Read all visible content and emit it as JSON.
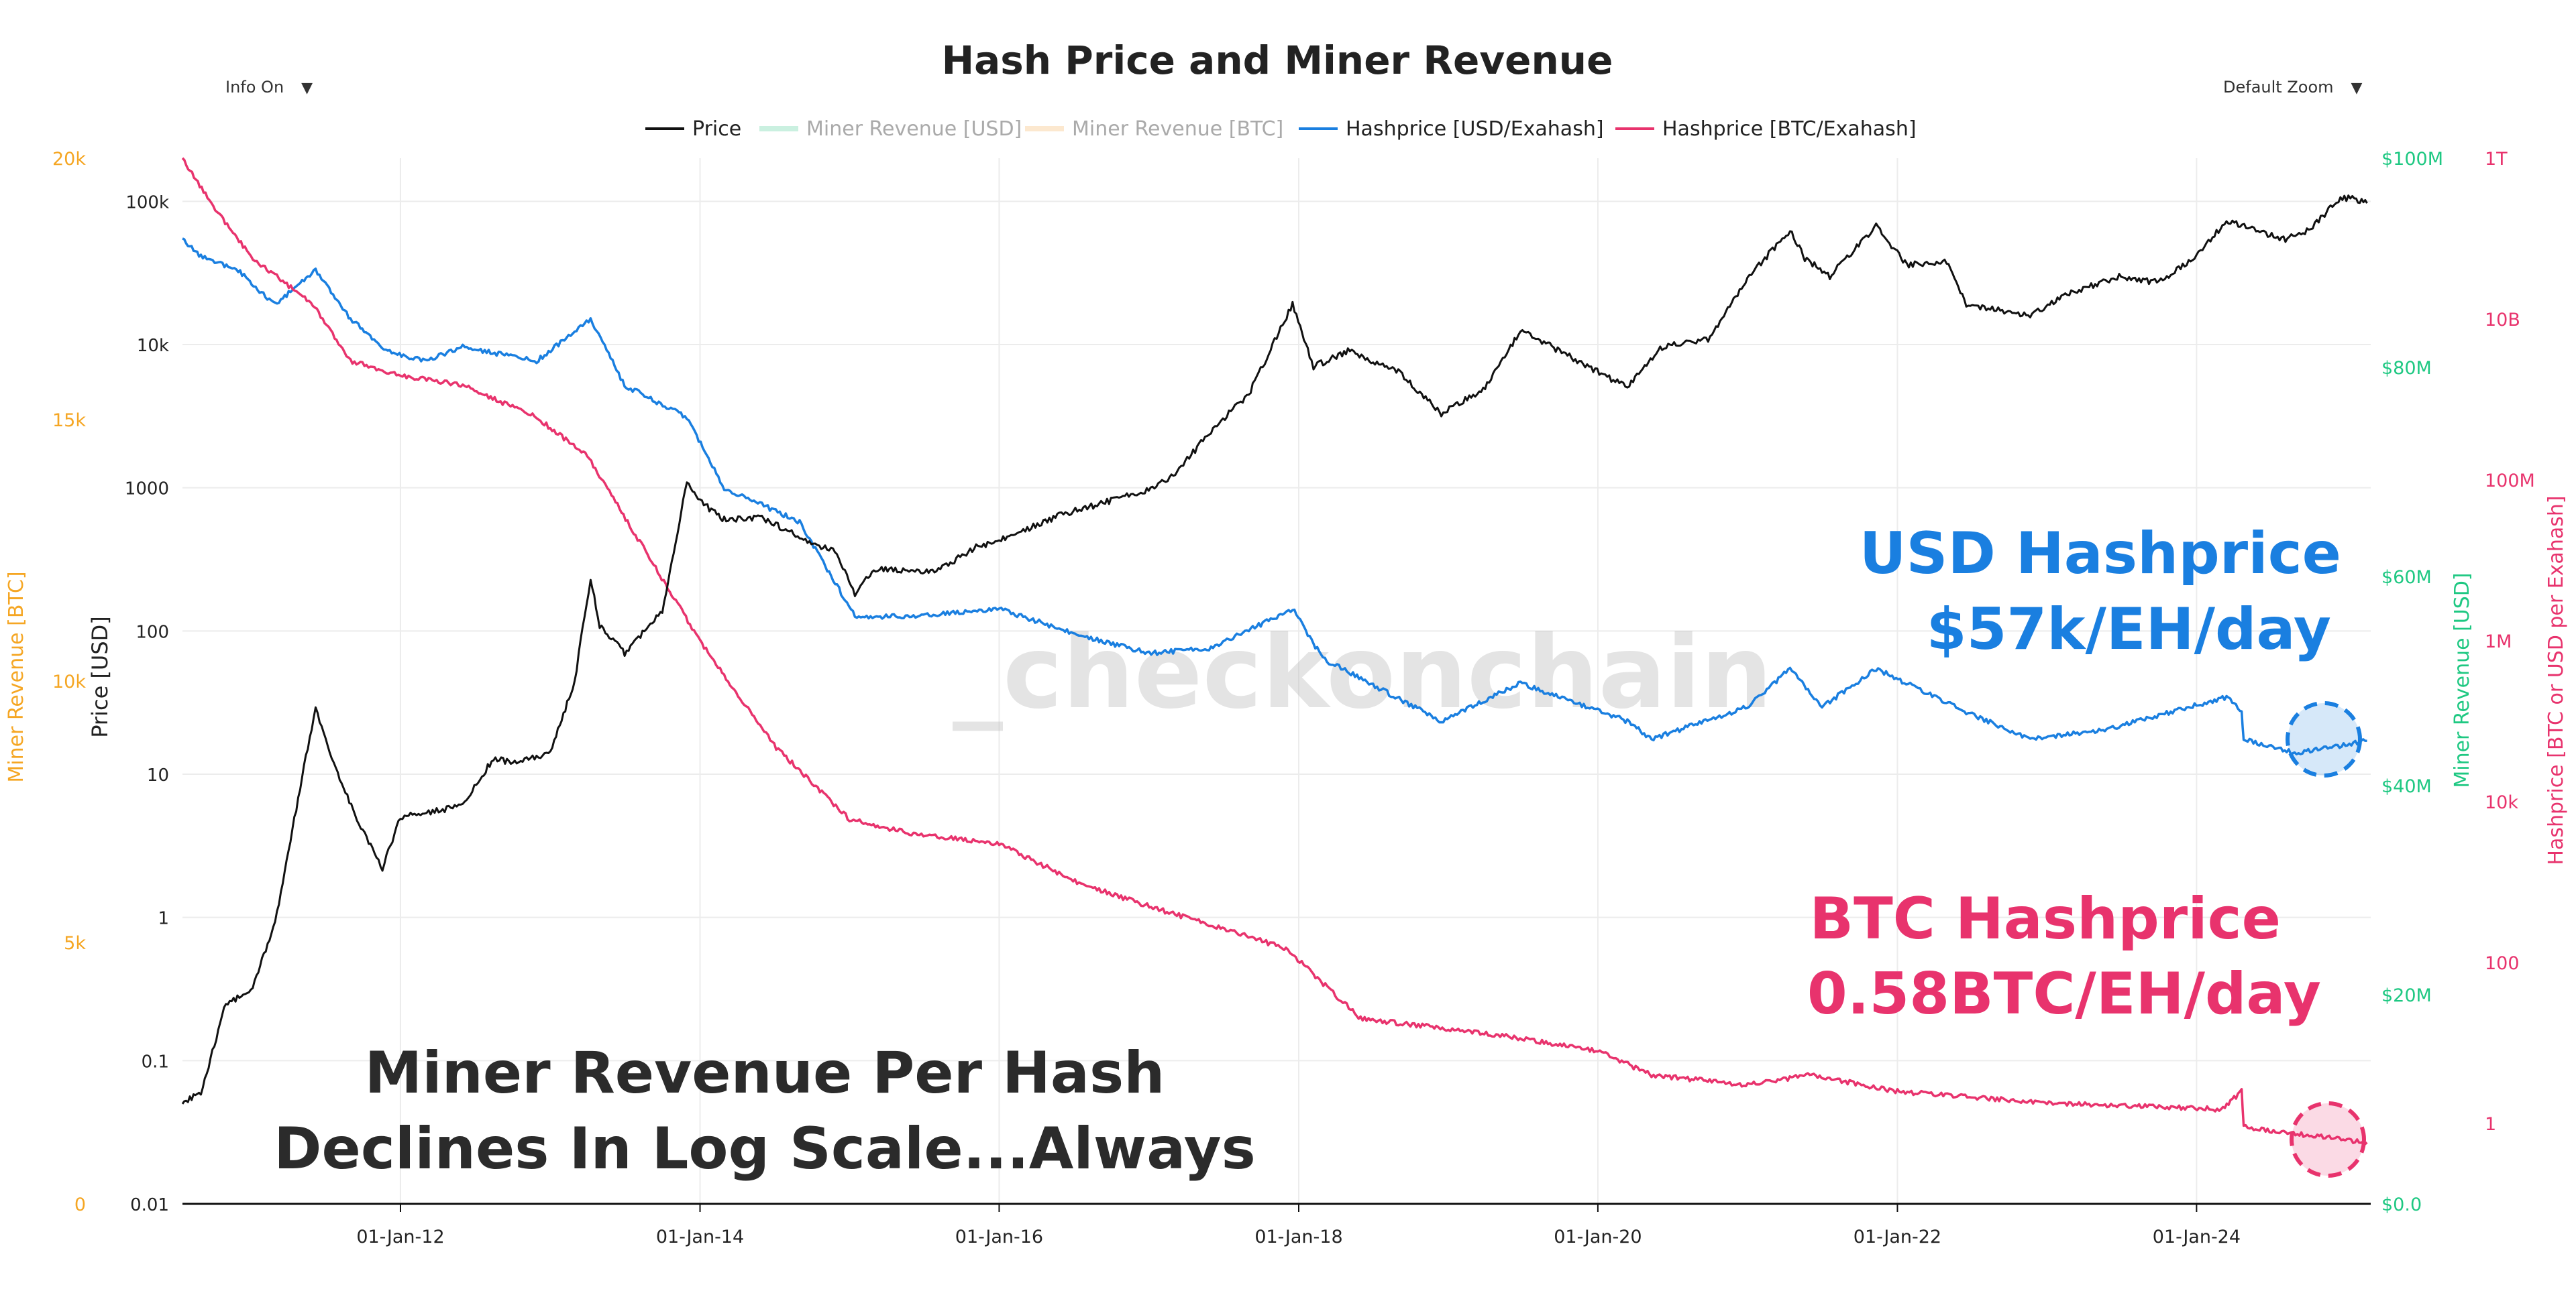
{
  "controls": {
    "info_label": "Info On",
    "zoom_label": "Default Zoom"
  },
  "watermark": "_checkonchain",
  "annotations": {
    "usd_title": "USD Hashprice",
    "usd_value": "$57k/EH/day",
    "btc_title": "BTC Hashprice",
    "btc_value": "0.58BTC/EH/day",
    "main_line1": "Miner Revenue Per Hash",
    "main_line2": "Declines In Log Scale...Always"
  },
  "chart_data": {
    "type": "line",
    "title": "Hash Price and Miner Revenue",
    "legend_position": "top-center",
    "grid": true,
    "x_axis": {
      "type": "date",
      "range": [
        "2010-07-18",
        "2025-03-01"
      ],
      "ticks": [
        {
          "date": "2012-01-01",
          "label": "01-Jan-12"
        },
        {
          "date": "2014-01-01",
          "label": "01-Jan-14"
        },
        {
          "date": "2016-01-01",
          "label": "01-Jan-16"
        },
        {
          "date": "2018-01-01",
          "label": "01-Jan-18"
        },
        {
          "date": "2020-01-01",
          "label": "01-Jan-20"
        },
        {
          "date": "2022-01-01",
          "label": "01-Jan-22"
        },
        {
          "date": "2024-01-01",
          "label": "01-Jan-24"
        }
      ]
    },
    "y_axes": {
      "price": {
        "label": "Price [USD]",
        "scale": "log",
        "range": [
          0.01,
          200000
        ],
        "ticks": [
          {
            "value": 0.01,
            "label": "0.01"
          },
          {
            "value": 0.1,
            "label": "0.1"
          },
          {
            "value": 1,
            "label": "1"
          },
          {
            "value": 10,
            "label": "10"
          },
          {
            "value": 100,
            "label": "100"
          },
          {
            "value": 1000,
            "label": "1000"
          },
          {
            "value": 10000,
            "label": "10k"
          },
          {
            "value": 100000,
            "label": "100k"
          }
        ]
      },
      "miner_revenue_btc": {
        "label": "Miner Revenue [BTC]",
        "scale": "linear",
        "range": [
          0,
          20000
        ],
        "color": "#f5a623",
        "ticks": [
          {
            "value": 0,
            "label": "0"
          },
          {
            "value": 5000,
            "label": "5k"
          },
          {
            "value": 10000,
            "label": "10k"
          },
          {
            "value": 15000,
            "label": "15k"
          },
          {
            "value": 20000,
            "label": "20k"
          }
        ]
      },
      "miner_revenue_usd": {
        "label": "Miner Revenue [USD]",
        "scale": "linear",
        "range": [
          0,
          100000000
        ],
        "color": "#1ec882",
        "ticks": [
          {
            "value": 0,
            "label": "$0.0"
          },
          {
            "value": 20000000,
            "label": "$20M"
          },
          {
            "value": 40000000,
            "label": "$40M"
          },
          {
            "value": 60000000,
            "label": "$60M"
          },
          {
            "value": 80000000,
            "label": "$80M"
          },
          {
            "value": 100000000,
            "label": "$100M"
          }
        ]
      },
      "hashprice": {
        "label": "Hashprice [BTC or USD per Exahash]",
        "scale": "log",
        "range": [
          0.1,
          1000000000000
        ],
        "color": "#e8336d",
        "ticks": [
          {
            "value": 1,
            "label": "1"
          },
          {
            "value": 100,
            "label": "100"
          },
          {
            "value": 10000,
            "label": "10k"
          },
          {
            "value": 1000000,
            "label": "1M"
          },
          {
            "value": 100000000,
            "label": "100M"
          },
          {
            "value": 10000000000,
            "label": "10B"
          },
          {
            "value": 1000000000000,
            "label": "1T"
          }
        ]
      }
    },
    "series": [
      {
        "name": "Price",
        "axis": "price",
        "color": "#111111",
        "visible": true,
        "points": [
          [
            "2010-07-18",
            0.05
          ],
          [
            "2010-09-01",
            0.06
          ],
          [
            "2010-11-01",
            0.25
          ],
          [
            "2011-01-01",
            0.3
          ],
          [
            "2011-03-01",
            0.9
          ],
          [
            "2011-05-01",
            8
          ],
          [
            "2011-06-08",
            29
          ],
          [
            "2011-08-01",
            10
          ],
          [
            "2011-10-01",
            4
          ],
          [
            "2011-11-18",
            2.2
          ],
          [
            "2012-01-01",
            5
          ],
          [
            "2012-06-01",
            6
          ],
          [
            "2012-08-15",
            13
          ],
          [
            "2012-10-01",
            12
          ],
          [
            "2013-01-01",
            14
          ],
          [
            "2013-03-01",
            45
          ],
          [
            "2013-04-09",
            230
          ],
          [
            "2013-05-01",
            110
          ],
          [
            "2013-07-01",
            70
          ],
          [
            "2013-10-01",
            140
          ],
          [
            "2013-11-30",
            1100
          ],
          [
            "2014-01-01",
            800
          ],
          [
            "2014-03-01",
            600
          ],
          [
            "2014-06-01",
            620
          ],
          [
            "2014-09-01",
            450
          ],
          [
            "2014-12-01",
            350
          ],
          [
            "2015-01-14",
            180
          ],
          [
            "2015-03-01",
            270
          ],
          [
            "2015-08-01",
            260
          ],
          [
            "2015-11-01",
            380
          ],
          [
            "2016-01-01",
            430
          ],
          [
            "2016-06-01",
            650
          ],
          [
            "2016-12-31",
            960
          ],
          [
            "2017-03-01",
            1200
          ],
          [
            "2017-06-01",
            2500
          ],
          [
            "2017-09-01",
            4500
          ],
          [
            "2017-12-17",
            19000
          ],
          [
            "2018-02-06",
            7000
          ],
          [
            "2018-05-01",
            9000
          ],
          [
            "2018-09-01",
            6500
          ],
          [
            "2018-12-15",
            3300
          ],
          [
            "2019-04-01",
            5000
          ],
          [
            "2019-06-26",
            12500
          ],
          [
            "2019-09-01",
            10000
          ],
          [
            "2019-12-01",
            7200
          ],
          [
            "2020-03-13",
            5000
          ],
          [
            "2020-06-01",
            9500
          ],
          [
            "2020-10-01",
            11000
          ],
          [
            "2020-12-31",
            29000
          ],
          [
            "2021-04-14",
            63000
          ],
          [
            "2021-05-20",
            40000
          ],
          [
            "2021-07-20",
            30000
          ],
          [
            "2021-11-10",
            67000
          ],
          [
            "2022-01-24",
            36000
          ],
          [
            "2022-05-01",
            38000
          ],
          [
            "2022-06-18",
            19000
          ],
          [
            "2022-11-21",
            16000
          ],
          [
            "2023-03-01",
            23000
          ],
          [
            "2023-07-01",
            30000
          ],
          [
            "2023-10-01",
            27000
          ],
          [
            "2024-01-01",
            42000
          ],
          [
            "2024-03-14",
            73000
          ],
          [
            "2024-08-05",
            54000
          ],
          [
            "2024-10-01",
            63000
          ],
          [
            "2024-12-17",
            106000
          ],
          [
            "2025-01-20",
            104000
          ],
          [
            "2025-02-20",
            97000
          ]
        ]
      },
      {
        "name": "Miner Revenue [USD]",
        "axis": "miner_revenue_usd",
        "color": "#9fe3c6",
        "visible": false,
        "points": []
      },
      {
        "name": "Miner Revenue [BTC]",
        "axis": "miner_revenue_btc",
        "color": "#f9d6a8",
        "visible": false,
        "points": []
      },
      {
        "name": "Hashprice [USD/Exahash]",
        "axis": "hashprice",
        "color": "#1a7fe0",
        "visible": true,
        "points": [
          [
            "2010-07-18",
            100000000000
          ],
          [
            "2010-09-01",
            60000000000
          ],
          [
            "2010-12-01",
            40000000000
          ],
          [
            "2011-03-01",
            15000000000
          ],
          [
            "2011-06-08",
            40000000000
          ],
          [
            "2011-09-01",
            10000000000
          ],
          [
            "2011-12-01",
            4000000000
          ],
          [
            "2012-03-01",
            3000000000
          ],
          [
            "2012-06-01",
            4500000000
          ],
          [
            "2012-11-28",
            3000000000
          ],
          [
            "2013-04-09",
            10000000000
          ],
          [
            "2013-07-01",
            1500000000
          ],
          [
            "2013-11-30",
            600000000
          ],
          [
            "2014-03-01",
            80000000
          ],
          [
            "2014-09-01",
            30000000
          ],
          [
            "2015-01-14",
            2000000
          ],
          [
            "2015-06-01",
            2000000
          ],
          [
            "2016-01-01",
            2500000
          ],
          [
            "2016-07-09",
            1200000
          ],
          [
            "2017-01-01",
            700000
          ],
          [
            "2017-06-01",
            800000
          ],
          [
            "2017-12-17",
            2500000
          ],
          [
            "2018-03-01",
            600000
          ],
          [
            "2018-12-15",
            100000
          ],
          [
            "2019-06-26",
            300000
          ],
          [
            "2020-03-13",
            100000
          ],
          [
            "2020-05-11",
            60000
          ],
          [
            "2020-12-31",
            150000
          ],
          [
            "2021-04-14",
            450000
          ],
          [
            "2021-07-01",
            150000
          ],
          [
            "2021-11-10",
            450000
          ],
          [
            "2022-06-18",
            130000
          ],
          [
            "2022-11-21",
            60000
          ],
          [
            "2023-06-01",
            80000
          ],
          [
            "2024-03-14",
            200000
          ],
          [
            "2024-04-20",
            130000
          ],
          [
            "2024-04-25",
            60000
          ],
          [
            "2024-09-01",
            40000
          ],
          [
            "2025-02-20",
            57000
          ]
        ]
      },
      {
        "name": "Hashprice [BTC/Exahash]",
        "axis": "hashprice",
        "color": "#e8336d",
        "visible": true,
        "points": [
          [
            "2010-07-18",
            1000000000000
          ],
          [
            "2010-10-01",
            250000000000
          ],
          [
            "2011-01-01",
            60000000000
          ],
          [
            "2011-06-01",
            15000000000
          ],
          [
            "2011-09-01",
            3000000000
          ],
          [
            "2012-01-01",
            2000000000
          ],
          [
            "2012-06-01",
            1500000000
          ],
          [
            "2012-11-28",
            600000000
          ],
          [
            "2013-04-01",
            200000000
          ],
          [
            "2014-01-01",
            1000000
          ],
          [
            "2014-07-01",
            50000
          ],
          [
            "2015-01-01",
            6000
          ],
          [
            "2015-06-01",
            4000
          ],
          [
            "2016-01-01",
            3000
          ],
          [
            "2016-07-09",
            1000
          ],
          [
            "2017-01-01",
            500
          ],
          [
            "2017-12-01",
            150
          ],
          [
            "2018-06-01",
            20
          ],
          [
            "2019-01-01",
            15
          ],
          [
            "2019-06-01",
            12
          ],
          [
            "2020-01-01",
            8
          ],
          [
            "2020-05-11",
            4
          ],
          [
            "2021-01-01",
            3
          ],
          [
            "2021-06-01",
            4
          ],
          [
            "2022-01-01",
            2.5
          ],
          [
            "2023-01-01",
            1.8
          ],
          [
            "2024-03-01",
            1.5
          ],
          [
            "2024-04-20",
            2.5
          ],
          [
            "2024-04-25",
            0.9
          ],
          [
            "2025-02-20",
            0.58
          ]
        ]
      }
    ]
  }
}
